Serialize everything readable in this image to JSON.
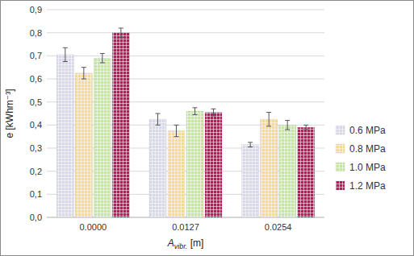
{
  "chart_data": {
    "type": "bar",
    "x_label": "Avibr. [m]",
    "y_label": "e [kWhm⁻³]",
    "categories": [
      "0.0000",
      "0.0127",
      "0.0254"
    ],
    "series": [
      {
        "name": "0.6 MPa",
        "color": "#d8d8ea",
        "values": [
          0.705,
          0.425,
          0.315
        ],
        "errors": [
          0.03,
          0.025,
          0.01
        ]
      },
      {
        "name": "0.8 MPa",
        "color": "#f7dc84",
        "values": [
          0.625,
          0.375,
          0.425
        ],
        "errors": [
          0.025,
          0.025,
          0.03
        ]
      },
      {
        "name": "1.0 MPa",
        "color": "#c4e6a0",
        "values": [
          0.69,
          0.46,
          0.4
        ],
        "errors": [
          0.02,
          0.015,
          0.02
        ]
      },
      {
        "name": "1.2 MPa",
        "color": "#c2185b",
        "values": [
          0.8,
          0.455,
          0.39
        ],
        "errors": [
          0.02,
          0.015,
          0.01
        ]
      }
    ],
    "ylim": [
      0,
      0.9
    ],
    "yticks": [
      {
        "value": 0,
        "label": "0,0"
      },
      {
        "value": 0.1,
        "label": "0,1"
      },
      {
        "value": 0.2,
        "label": "0,2"
      },
      {
        "value": 0.3,
        "label": "0,3"
      },
      {
        "value": 0.4,
        "label": "0,4"
      },
      {
        "value": 0.5,
        "label": "0,5"
      },
      {
        "value": 0.6,
        "label": "0,6"
      },
      {
        "value": 0.7,
        "label": "0,7"
      },
      {
        "value": 0.8,
        "label": "0,8"
      },
      {
        "value": 0.9,
        "label": "0,9"
      }
    ],
    "grid": true,
    "legend": "right"
  }
}
